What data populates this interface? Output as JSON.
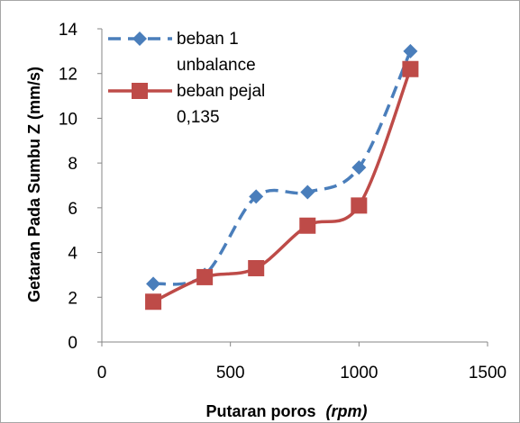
{
  "chart_data": {
    "type": "line",
    "xlabel": "Putaran poros",
    "xlabel_unit": "(rpm)",
    "ylabel": "Getaran Pada Sumbu Z (mm/s)",
    "xlim": [
      0,
      1500
    ],
    "ylim": [
      0,
      14
    ],
    "x_ticks": [
      0,
      500,
      1000,
      1500
    ],
    "y_ticks": [
      0,
      2,
      4,
      6,
      8,
      10,
      12,
      14
    ],
    "grid": false,
    "legend_position": "top-left",
    "series": [
      {
        "name": "beban 1 unbalance",
        "legend_lines": [
          "beban 1",
          "unbalance"
        ],
        "color": "#4a7ebb",
        "marker": "diamond",
        "line_style": "dashed",
        "x": [
          200,
          400,
          600,
          800,
          1000,
          1200
        ],
        "y": [
          2.6,
          3.0,
          6.5,
          6.7,
          7.8,
          13.0
        ]
      },
      {
        "name": "beban pejal 0,135",
        "legend_lines": [
          "beban pejal",
          "0,135"
        ],
        "color": "#be4b48",
        "marker": "square",
        "line_style": "solid",
        "x": [
          200,
          400,
          600,
          800,
          1000,
          1200
        ],
        "y": [
          1.8,
          2.9,
          3.3,
          5.2,
          6.1,
          12.2
        ]
      }
    ]
  }
}
